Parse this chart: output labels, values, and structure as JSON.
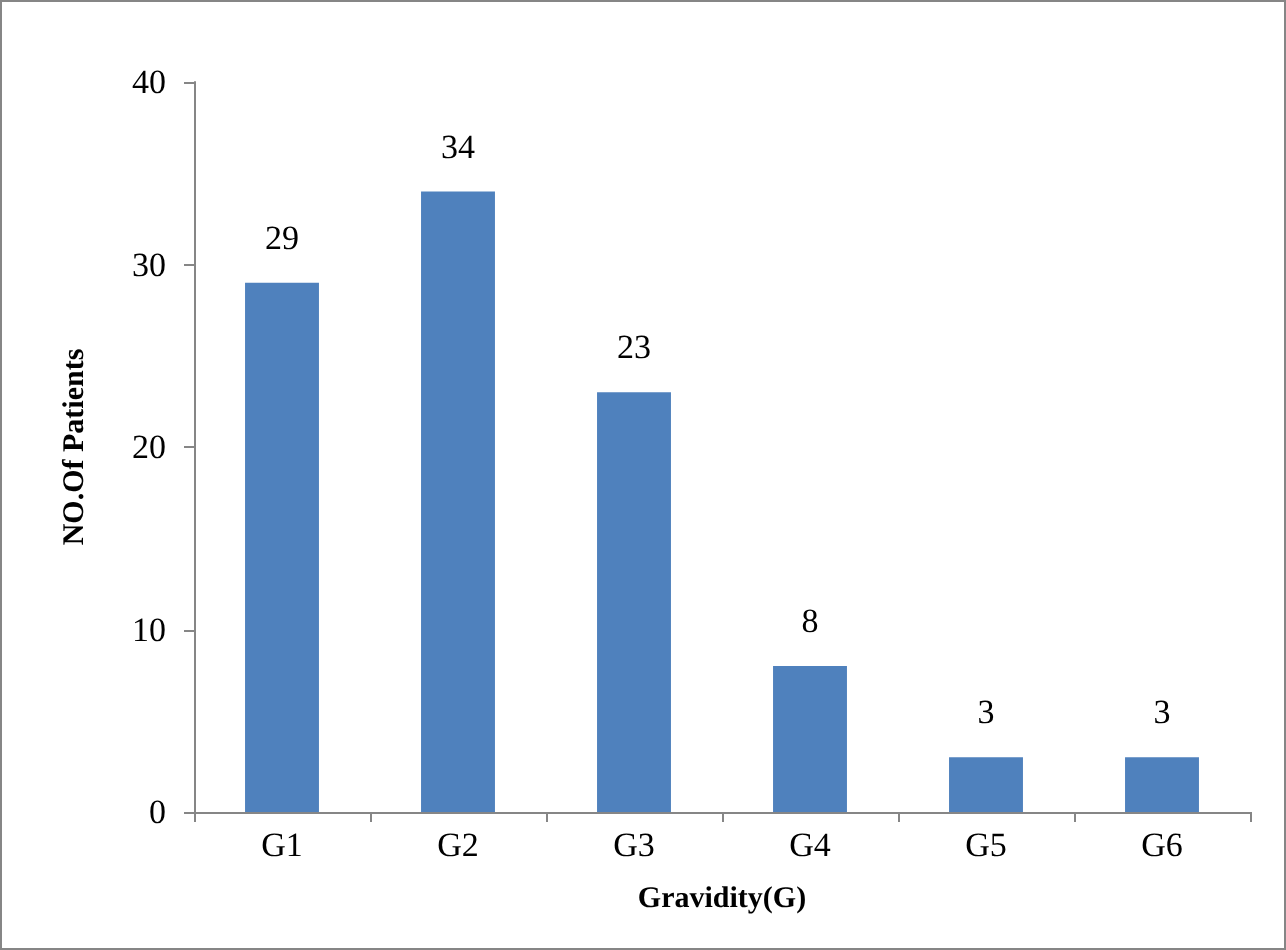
{
  "chart_data": {
    "type": "bar",
    "xlabel": "Gravidity(G)",
    "ylabel": "NO.Of Patients",
    "categories": [
      "G1",
      "G2",
      "G3",
      "G4",
      "G5",
      "G6"
    ],
    "values": [
      29,
      34,
      23,
      8,
      3,
      3
    ],
    "color": "#4f81bd",
    "ylim": [
      0,
      40
    ],
    "yticks": [
      0,
      10,
      20,
      30,
      40
    ],
    "grid": false,
    "data_labels": true
  }
}
